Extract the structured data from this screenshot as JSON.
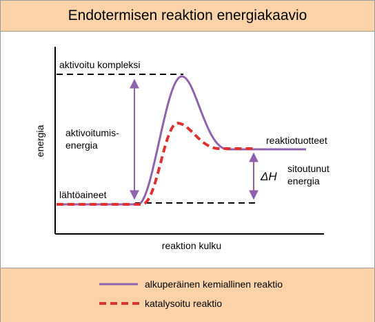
{
  "title": "Endotermisen reaktion energiakaavio",
  "axes": {
    "y_label": "energia",
    "x_label": "reaktion kulku"
  },
  "labels": {
    "activated_complex": "aktivoitu kompleksi",
    "activation_energy_line1": "aktivoitumis-",
    "activation_energy_line2": "energia",
    "reactants": "lähtöaineet",
    "products": "reaktiotuotteet",
    "delta_h": "ΔH",
    "bound_energy_line1": "sitoutunut",
    "bound_energy_line2": "energia"
  },
  "legend": {
    "original": "alkuperäinen kemiallinen reaktio",
    "catalyzed": "katalysoitu reaktio"
  },
  "colors": {
    "band": "#fcd3a9",
    "original_curve": "#8e63ad",
    "catalyzed_curve": "#e03030",
    "arrows": "#8e63ad"
  }
}
